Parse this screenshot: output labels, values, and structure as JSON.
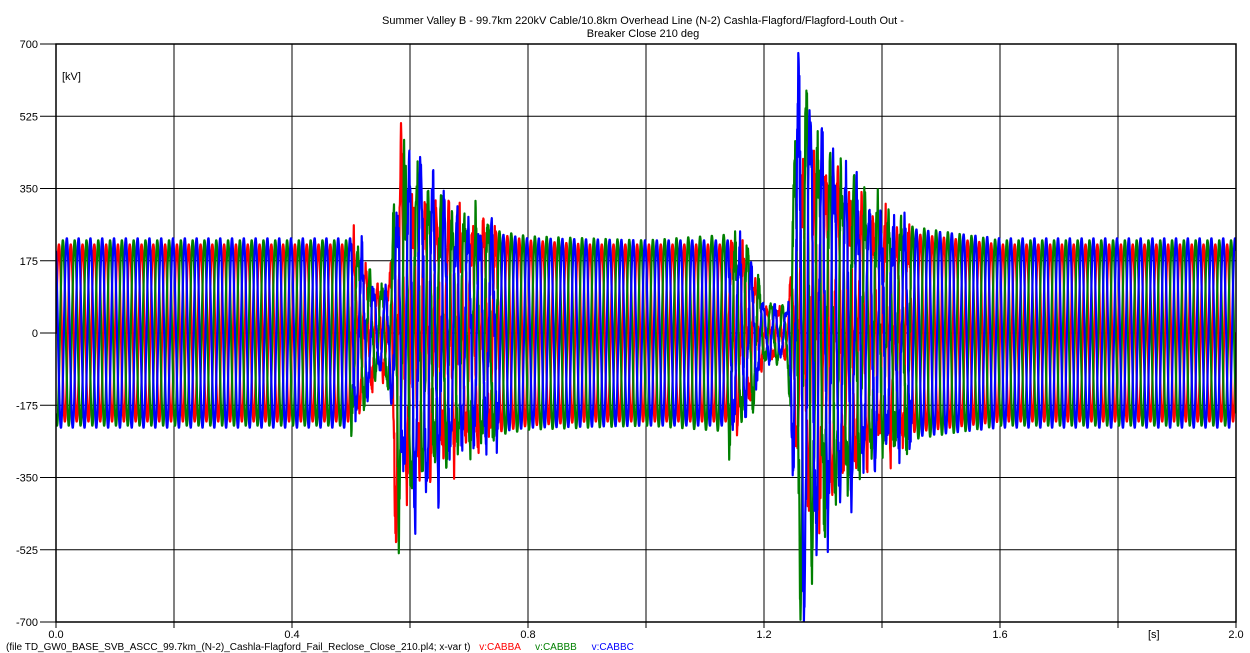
{
  "chart_data": {
    "type": "line",
    "title": "Summer Valley B - 99.7km 220kV Cable/10.8km Overhead Line (N-2) Cashla-Flagford/Flagford-Louth Out -",
    "subtitle": "Breaker Close 210 deg",
    "ylabel": "[kV]",
    "xlabel": "[s]",
    "xlim": [
      0.0,
      2.0
    ],
    "ylim": [
      -700,
      700
    ],
    "x_ticks": [
      "0.0",
      "0.4",
      "0.8",
      "1.2",
      "1.6",
      "2.0"
    ],
    "y_ticks": [
      "700",
      "525",
      "350",
      "175",
      "0",
      "-175",
      "-350",
      "-525",
      "-700"
    ],
    "grid": true,
    "footer_file": "(file TD_GW0_BASE_SVB_ASCC_99.7km_(N-2)_Cashla-Flagford_Fail_Reclose_Close_210.pl4; x-var t)",
    "series": [
      {
        "name": "v:CABBA",
        "color": "#ff0000",
        "phase_deg": 0,
        "envelope": [
          [
            0,
            215
          ],
          [
            0.5,
            215
          ],
          [
            0.52,
            160
          ],
          [
            0.545,
            100
          ],
          [
            0.565,
            120
          ],
          [
            0.578,
            515
          ],
          [
            0.595,
            330
          ],
          [
            0.63,
            290
          ],
          [
            0.7,
            255
          ],
          [
            0.8,
            225
          ],
          [
            0.9,
            215
          ],
          [
            1.0,
            215
          ],
          [
            1.15,
            215
          ],
          [
            1.18,
            150
          ],
          [
            1.2,
            60
          ],
          [
            1.24,
            55
          ],
          [
            1.265,
            400
          ],
          [
            1.3,
            380
          ],
          [
            1.4,
            250
          ],
          [
            1.6,
            215
          ],
          [
            2.0,
            215
          ]
        ]
      },
      {
        "name": "v:CABBB",
        "color": "#008000",
        "phase_deg": 120,
        "envelope": [
          [
            0,
            225
          ],
          [
            0.5,
            225
          ],
          [
            0.52,
            170
          ],
          [
            0.545,
            90
          ],
          [
            0.565,
            130
          ],
          [
            0.58,
            400
          ],
          [
            0.6,
            380
          ],
          [
            0.63,
            300
          ],
          [
            0.7,
            260
          ],
          [
            0.8,
            235
          ],
          [
            1.0,
            225
          ],
          [
            1.15,
            240
          ],
          [
            1.18,
            180
          ],
          [
            1.2,
            70
          ],
          [
            1.24,
            60
          ],
          [
            1.258,
            640
          ],
          [
            1.3,
            420
          ],
          [
            1.4,
            270
          ],
          [
            1.6,
            225
          ],
          [
            2.0,
            225
          ]
        ]
      },
      {
        "name": "v:CABBC",
        "color": "#0000ff",
        "phase_deg": 240,
        "envelope": [
          [
            0,
            230
          ],
          [
            0.5,
            230
          ],
          [
            0.52,
            170
          ],
          [
            0.545,
            80
          ],
          [
            0.565,
            110
          ],
          [
            0.58,
            300
          ],
          [
            0.61,
            430
          ],
          [
            0.64,
            330
          ],
          [
            0.7,
            250
          ],
          [
            0.8,
            230
          ],
          [
            1.0,
            225
          ],
          [
            1.15,
            225
          ],
          [
            1.18,
            150
          ],
          [
            1.2,
            65
          ],
          [
            1.24,
            50
          ],
          [
            1.26,
            650
          ],
          [
            1.3,
            430
          ],
          [
            1.4,
            260
          ],
          [
            1.6,
            230
          ],
          [
            2.0,
            230
          ]
        ]
      }
    ]
  }
}
